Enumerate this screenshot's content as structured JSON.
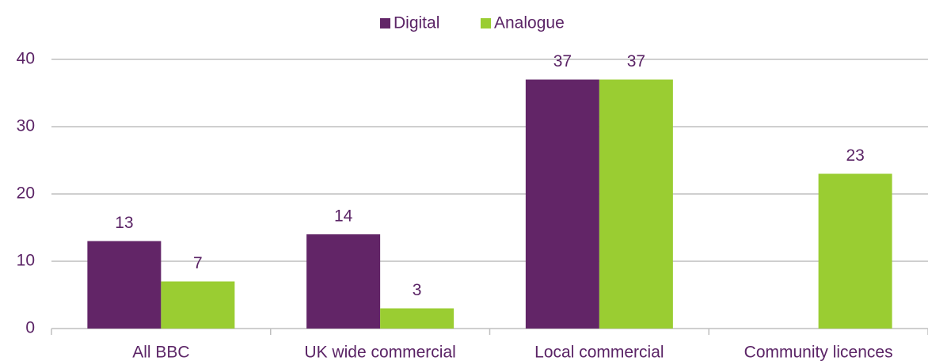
{
  "chart_data": {
    "type": "bar",
    "categories": [
      "All BBC",
      "UK wide commercial",
      "Local commercial",
      "Community licences"
    ],
    "series": [
      {
        "name": "Digital",
        "color": "#622567",
        "values": [
          13,
          14,
          37,
          null
        ]
      },
      {
        "name": "Analogue",
        "color": "#9acd32",
        "values": [
          7,
          3,
          37,
          23
        ]
      }
    ],
    "ylim": [
      0,
      40
    ],
    "yticks": [
      0,
      10,
      20,
      30,
      40
    ],
    "grid": true,
    "legend": "top"
  }
}
